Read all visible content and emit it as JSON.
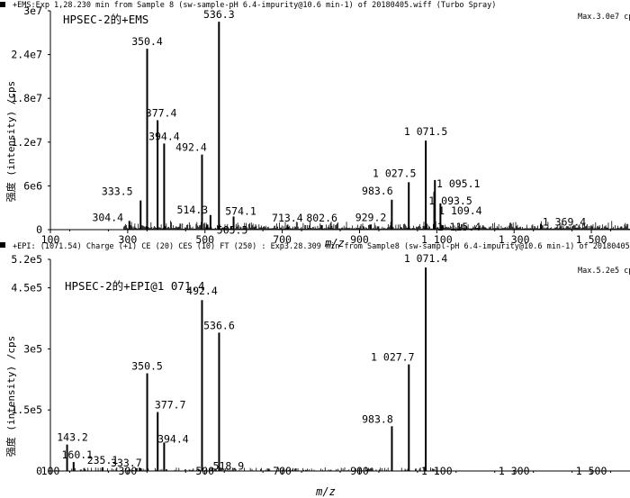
{
  "chart_data": [
    {
      "type": "bar",
      "header": "+EMS:Exp 1,28.230 min from Sample 8 (sw-sample-pH 6.4-impurity@10.6 min-1) of 20180405.wiff (Turbo Spray)",
      "max_label": "Max.3.0e7 cps",
      "title": "HPSEC-2的+EMS",
      "xlabel": "m/z",
      "ylabel": "强度 (intensity) /cps",
      "xlim": [
        100,
        1600
      ],
      "ylim": [
        0,
        30000000
      ],
      "xticks": [
        100,
        300,
        500,
        700,
        900,
        1100,
        1300,
        1500
      ],
      "xtick_labels": [
        "100",
        "300",
        "500",
        "700",
        "900",
        "1 100",
        "1 300",
        "1 500"
      ],
      "yticks": [
        0,
        6000000,
        12000000,
        18000000,
        24000000,
        30000000
      ],
      "ytick_labels": [
        "0",
        "6e6",
        "1.2e7",
        "1.8e7",
        "2.4e7",
        "3e7"
      ],
      "peaks": [
        {
          "mz": 304.4,
          "label": "304.4",
          "intensity": 1200000
        },
        {
          "mz": 333.5,
          "label": "333.5",
          "intensity": 4000000
        },
        {
          "mz": 350.4,
          "label": "350.4",
          "intensity": 24800000
        },
        {
          "mz": 377.4,
          "label": "377.4",
          "intensity": 15000000
        },
        {
          "mz": 394.4,
          "label": "394.4",
          "intensity": 11800000
        },
        {
          "mz": 492.4,
          "label": "492.4",
          "intensity": 10300000
        },
        {
          "mz": 514.3,
          "label": "514.3",
          "intensity": 2000000
        },
        {
          "mz": 536.3,
          "label": "536.3",
          "intensity": 28500000
        },
        {
          "mz": 574.1,
          "label": "574.1",
          "intensity": 1800000
        },
        {
          "mz": 505.5,
          "label": "505.5",
          "intensity": 700000
        },
        {
          "mz": 713.4,
          "label": "713.4",
          "intensity": 600000
        },
        {
          "mz": 802.6,
          "label": "802.6",
          "intensity": 600000
        },
        {
          "mz": 929.2,
          "label": "929.2",
          "intensity": 700000
        },
        {
          "mz": 983.6,
          "label": "983.6",
          "intensity": 4100000
        },
        {
          "mz": 1027.5,
          "label": "1 027.5",
          "intensity": 6500000
        },
        {
          "mz": 1071.5,
          "label": "1 071.5",
          "intensity": 12200000
        },
        {
          "mz": 1095.1,
          "label": "1 095.1",
          "intensity": 6800000
        },
        {
          "mz": 1093.5,
          "label": "1 093.5",
          "intensity": 5200000
        },
        {
          "mz": 1109.4,
          "label": "1 109.4",
          "intensity": 3600000
        },
        {
          "mz": 1115.4,
          "label": "1 115.4",
          "intensity": 600000
        },
        {
          "mz": 1369.4,
          "label": "1 369.4",
          "intensity": 800000
        }
      ]
    },
    {
      "type": "bar",
      "header": "+EPI: (1071.54) Charge (+1) CE (20) CES (10) FT (250) : Exp3.28.309 min from Sample8 (sw-sampl-pH 6.4-impurity@10.6 min-1) of 20180405...",
      "max_label": "Max.5.2e5 cps",
      "title": "HPSEC-2的+EPI@1 071.4",
      "xlabel": "m/z",
      "ylabel": "强度 (intensity) /cps",
      "xlim": [
        100,
        1600
      ],
      "ylim": [
        0,
        520000
      ],
      "xticks": [
        100,
        300,
        500,
        700,
        900,
        1100,
        1300,
        1500
      ],
      "xtick_labels": [
        "100",
        "300",
        "500",
        "700",
        "900",
        "1 100",
        "1 300",
        "1 500"
      ],
      "yticks": [
        0,
        150000,
        300000,
        450000,
        520000
      ],
      "ytick_labels": [
        "0",
        "1.5e5",
        "3e5",
        "4.5e5",
        "5.2e5"
      ],
      "peaks": [
        {
          "mz": 143.2,
          "label": "143.2",
          "intensity": 65000
        },
        {
          "mz": 160.1,
          "label": "160.1",
          "intensity": 22000
        },
        {
          "mz": 235.1,
          "label": "235.1",
          "intensity": 9000
        },
        {
          "mz": 333.7,
          "label": "333.7",
          "intensity": 7000
        },
        {
          "mz": 350.5,
          "label": "350.5",
          "intensity": 240000
        },
        {
          "mz": 377.7,
          "label": "377.7",
          "intensity": 145000
        },
        {
          "mz": 394.4,
          "label": "394.4",
          "intensity": 70000
        },
        {
          "mz": 492.4,
          "label": "492.4",
          "intensity": 420000
        },
        {
          "mz": 518.9,
          "label": "518.9",
          "intensity": 8000
        },
        {
          "mz": 536.6,
          "label": "536.6",
          "intensity": 340000
        },
        {
          "mz": 983.8,
          "label": "983.8",
          "intensity": 110000
        },
        {
          "mz": 1027.7,
          "label": "1 027.7",
          "intensity": 262000
        },
        {
          "mz": 1071.4,
          "label": "1 071.4",
          "intensity": 500000
        }
      ]
    }
  ]
}
